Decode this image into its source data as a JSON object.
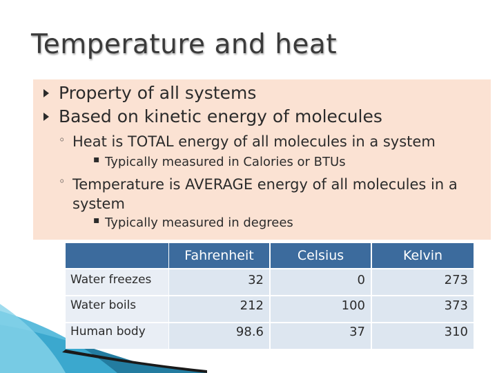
{
  "title": "Temperature and heat",
  "bullets": [
    "Property of all systems",
    "Based on kinetic energy of molecules"
  ],
  "sub_bullets": [
    {
      "text": "Heat is TOTAL energy of all molecules in a system",
      "detail": "Typically measured in Calories or BTUs"
    },
    {
      "text": "Temperature is AVERAGE energy of all molecules in a system",
      "detail": "Typically measured in degrees"
    }
  ],
  "table": {
    "columns": [
      "Fahrenheit",
      "Celsius",
      "Kelvin"
    ],
    "rows": [
      {
        "label": "Water freezes",
        "values": [
          "32",
          "0",
          "273"
        ]
      },
      {
        "label": "Water boils",
        "values": [
          "212",
          "100",
          "373"
        ]
      },
      {
        "label": "Human body",
        "values": [
          "98.6",
          "37",
          "310"
        ]
      }
    ]
  },
  "colors": {
    "content_background": "#fbe2d3",
    "table_header": "#3c6b9d",
    "table_cell": "#dde6f0",
    "decor_blue": "#2a8fb5"
  }
}
